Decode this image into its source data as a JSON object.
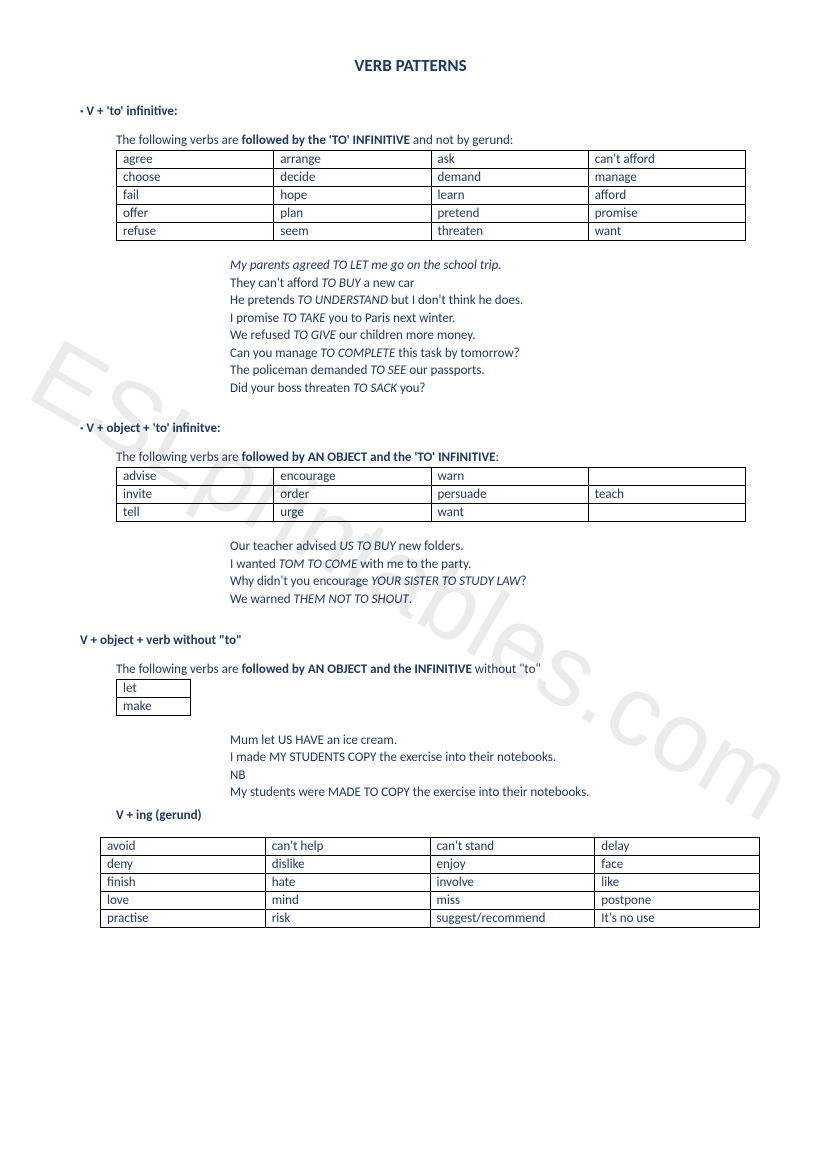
{
  "watermark": "ESLprintables.com",
  "title": "VERB PATTERNS",
  "section1": {
    "head_prefix": "· ",
    "head": "V + 'to' infinitive:",
    "intro_pre": "The following verbs are ",
    "intro_bold": "followed by the 'TO' INFINITIVE",
    "intro_post": " and not by gerund:",
    "table": [
      [
        "agree",
        "arrange",
        "ask",
        "can't afford"
      ],
      [
        "choose",
        "decide",
        "demand",
        "manage"
      ],
      [
        "fail",
        "hope",
        "learn",
        "afford"
      ],
      [
        "offer",
        "plan",
        "pretend",
        "promise"
      ],
      [
        "refuse",
        "seem",
        "threaten",
        "want"
      ]
    ],
    "examples": [
      [
        {
          "t": "My parents agreed ",
          "i": true
        },
        {
          "t": "TO LET",
          "i": true
        },
        {
          "t": " me go on the school trip.",
          "i": true
        }
      ],
      [
        {
          "t": "They can't afford "
        },
        {
          "t": "TO BUY",
          "i": true
        },
        {
          "t": " a new car"
        }
      ],
      [
        {
          "t": "He pretends "
        },
        {
          "t": "TO UNDERSTAND",
          "i": true
        },
        {
          "t": " but I don't think he does."
        }
      ],
      [
        {
          "t": "I promise "
        },
        {
          "t": "TO TAKE",
          "i": true
        },
        {
          "t": " you to Paris next winter."
        }
      ],
      [
        {
          "t": "We refused "
        },
        {
          "t": "TO GIVE",
          "i": true
        },
        {
          "t": " our children more money."
        }
      ],
      [
        {
          "t": "Can you manage "
        },
        {
          "t": "TO COMPLETE",
          "i": true
        },
        {
          "t": " this task by tomorrow?"
        }
      ],
      [
        {
          "t": "The policeman demanded "
        },
        {
          "t": "TO SEE",
          "i": true
        },
        {
          "t": " our passports."
        }
      ],
      [
        {
          "t": "Did your boss threaten "
        },
        {
          "t": "TO SACK",
          "i": true
        },
        {
          "t": " you?"
        }
      ]
    ]
  },
  "section2": {
    "head_prefix": "· ",
    "head": "V + object + 'to' infinitve:",
    "intro_pre": "The following verbs are ",
    "intro_bold": "followed by AN OBJECT and the 'TO' INFINITIVE",
    "intro_post": ":",
    "table": [
      [
        "advise",
        "encourage",
        "warn",
        ""
      ],
      [
        "invite",
        "order",
        "persuade",
        "teach"
      ],
      [
        "tell",
        "urge",
        "want",
        ""
      ]
    ],
    "examples": [
      [
        {
          "t": "Our teacher advised "
        },
        {
          "t": "US TO BUY",
          "i": true
        },
        {
          "t": " new folders."
        }
      ],
      [
        {
          "t": "I wanted "
        },
        {
          "t": "TOM TO COME",
          "i": true
        },
        {
          "t": " with me to the party."
        }
      ],
      [
        {
          "t": "Why didn't you encourage "
        },
        {
          "t": "YOUR SISTER TO STUDY LAW",
          "i": true
        },
        {
          "t": "?"
        }
      ],
      [
        {
          "t": "We warned "
        },
        {
          "t": "THEM NOT TO SHOUT",
          "i": true
        },
        {
          "t": "."
        }
      ]
    ]
  },
  "section3": {
    "head": "V + object  + verb without \"to\"",
    "intro_pre": "The following verbs are ",
    "intro_bold": "followed by AN OBJECT and the  INFINITIVE",
    "intro_post": " without \"to\"",
    "table": [
      [
        "let"
      ],
      [
        "make"
      ]
    ],
    "examples": [
      [
        {
          "t": "Mum let US HAVE an ice cream."
        }
      ],
      [
        {
          "t": "I made MY STUDENTS COPY the exercise into their notebooks."
        }
      ],
      [
        {
          "t": "NB"
        }
      ],
      [
        {
          "t": "My students were MADE TO COPY the exercise into their notebooks."
        }
      ]
    ]
  },
  "section4": {
    "head": "V + ing (gerund)",
    "table": [
      [
        "avoid",
        "can't help",
        "can't stand",
        "delay"
      ],
      [
        "deny",
        "dislike",
        "enjoy",
        "face"
      ],
      [
        "finish",
        "hate",
        "involve",
        "like"
      ],
      [
        "love",
        "mind",
        "miss",
        "postpone"
      ],
      [
        "practise",
        "risk",
        "suggest/recommend",
        "It's no use"
      ]
    ]
  }
}
